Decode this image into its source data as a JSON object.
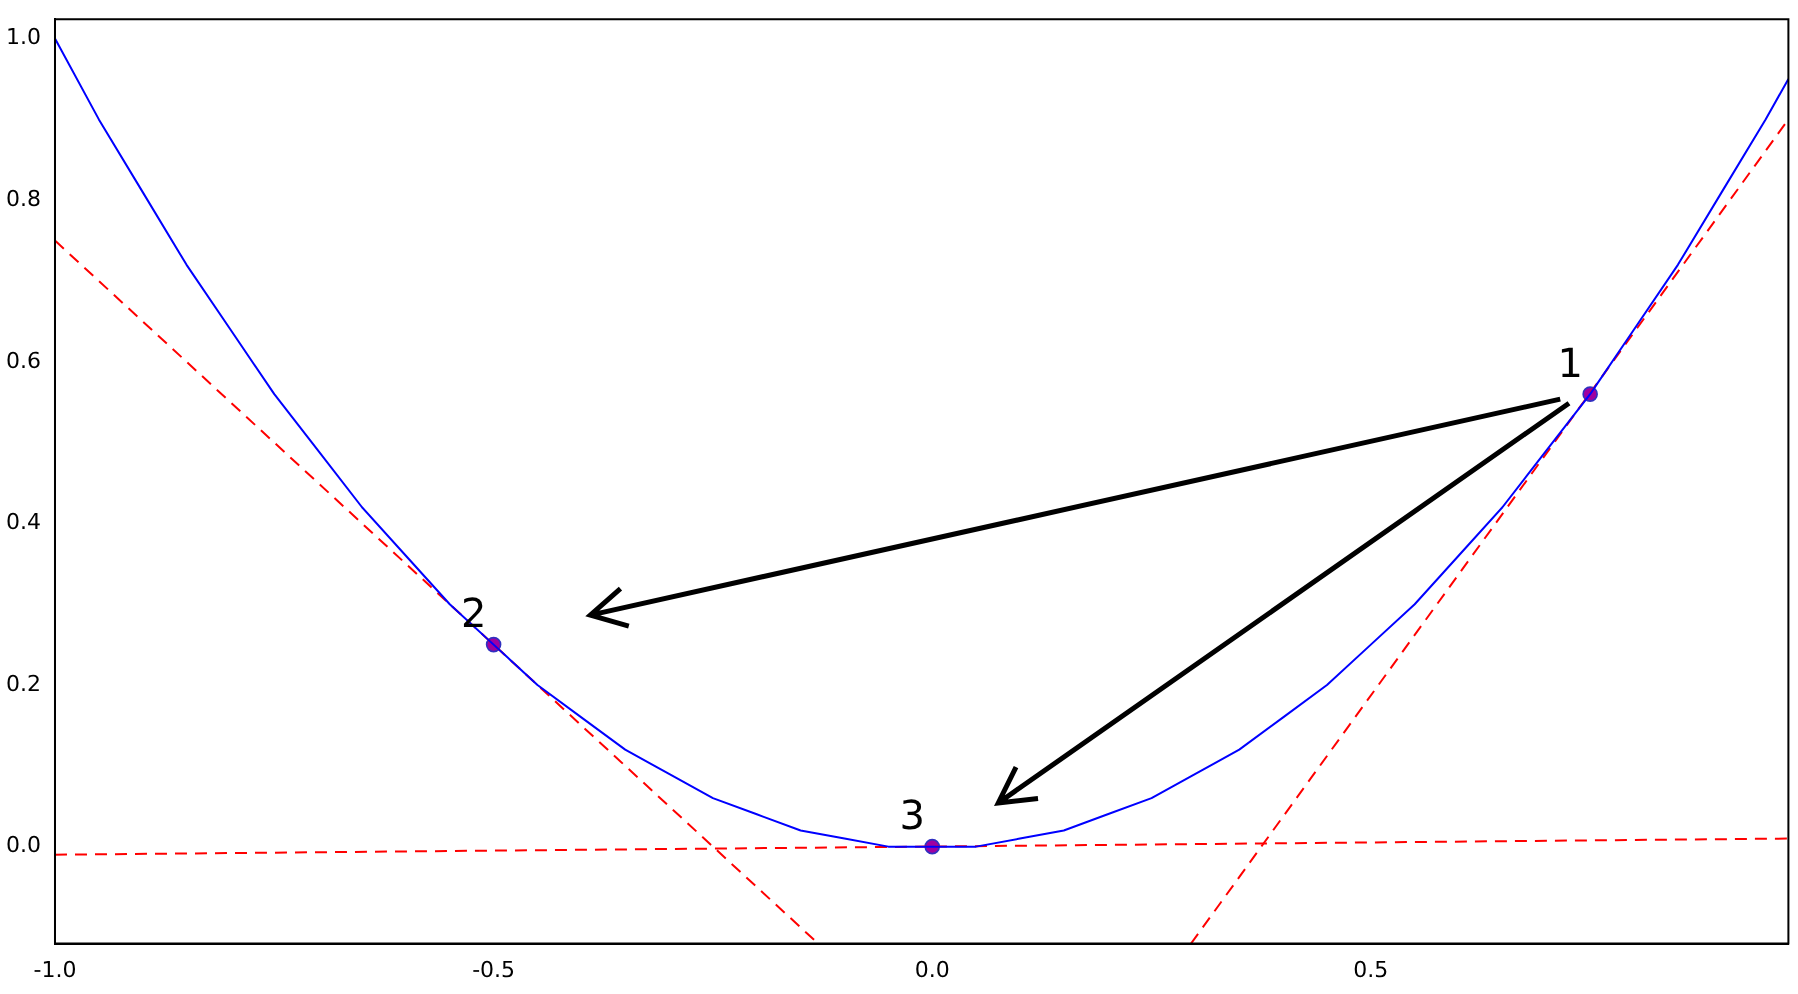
{
  "chart_data": {
    "type": "line",
    "xlim": [
      -1,
      0.976
    ],
    "ylim": [
      -0.12,
      1.024
    ],
    "xticks": [
      {
        "value": -1,
        "label": "-1.0"
      },
      {
        "value": -0.5,
        "label": "-0.5"
      },
      {
        "value": 0,
        "label": "0.0"
      },
      {
        "value": 0.5,
        "label": "0.5"
      }
    ],
    "yticks": [
      {
        "value": 0,
        "label": "0.0"
      },
      {
        "value": 0.2,
        "label": "0.2"
      },
      {
        "value": 0.4,
        "label": "0.4"
      },
      {
        "value": 0.6,
        "label": "0.6"
      },
      {
        "value": 0.8,
        "label": "0.8"
      },
      {
        "value": 1,
        "label": "1.0"
      }
    ],
    "grid": false,
    "legend": false,
    "series": [
      {
        "color": "#0000ff",
        "line_style": "solid",
        "marker": "none",
        "x": [
          -1,
          -0.95,
          -0.9,
          -0.85,
          -0.8,
          -0.75,
          -0.7,
          -0.65,
          -0.6,
          -0.55,
          -0.5,
          -0.45,
          -0.4,
          -0.35,
          -0.3,
          -0.25,
          -0.2,
          -0.15,
          -0.1,
          -0.05,
          0,
          0.05,
          0.1,
          0.15,
          0.2,
          0.25,
          0.3,
          0.35,
          0.4,
          0.45,
          0.5,
          0.55,
          0.6,
          0.65,
          0.7,
          0.75,
          0.8,
          0.85,
          0.9,
          0.95,
          0.976
        ],
        "values": [
          1,
          0.9,
          0.81,
          0.72,
          0.64,
          0.56,
          0.49,
          0.42,
          0.36,
          0.3,
          0.25,
          0.2,
          0.16,
          0.12,
          0.09,
          0.06,
          0.04,
          0.02,
          0.01,
          0,
          0,
          0,
          0.01,
          0.02,
          0.04,
          0.06,
          0.09,
          0.12,
          0.16,
          0.2,
          0.25,
          0.3,
          0.36,
          0.42,
          0.49,
          0.56,
          0.64,
          0.72,
          0.81,
          0.9,
          0.95
        ]
      },
      {
        "color": "#ff0000",
        "line_style": "dashed",
        "marker": "none",
        "x": [
          0.295,
          0.976
        ],
        "values": [
          -0.12,
          0.9
        ]
      },
      {
        "color": "#ff0000",
        "line_style": "dashed",
        "marker": "none",
        "x": [
          -1,
          -0.13
        ],
        "values": [
          0.75,
          -0.12
        ]
      },
      {
        "color": "#ff0000",
        "line_style": "dashed",
        "marker": "none",
        "x": [
          -1,
          0.976
        ],
        "values": [
          -0.01,
          0.01
        ]
      },
      {
        "type": "scatter",
        "color": "#a000a0",
        "marker": "circle",
        "x": [
          0.75,
          -0.5,
          0
        ],
        "values": [
          0.56,
          0.25,
          0
        ]
      }
    ],
    "annotations": [
      {
        "text": "1",
        "x": 0.75,
        "y": 0.56
      },
      {
        "text": "2",
        "x": -0.5,
        "y": 0.25
      },
      {
        "text": "3",
        "x": 0,
        "y": 0
      }
    ]
  }
}
